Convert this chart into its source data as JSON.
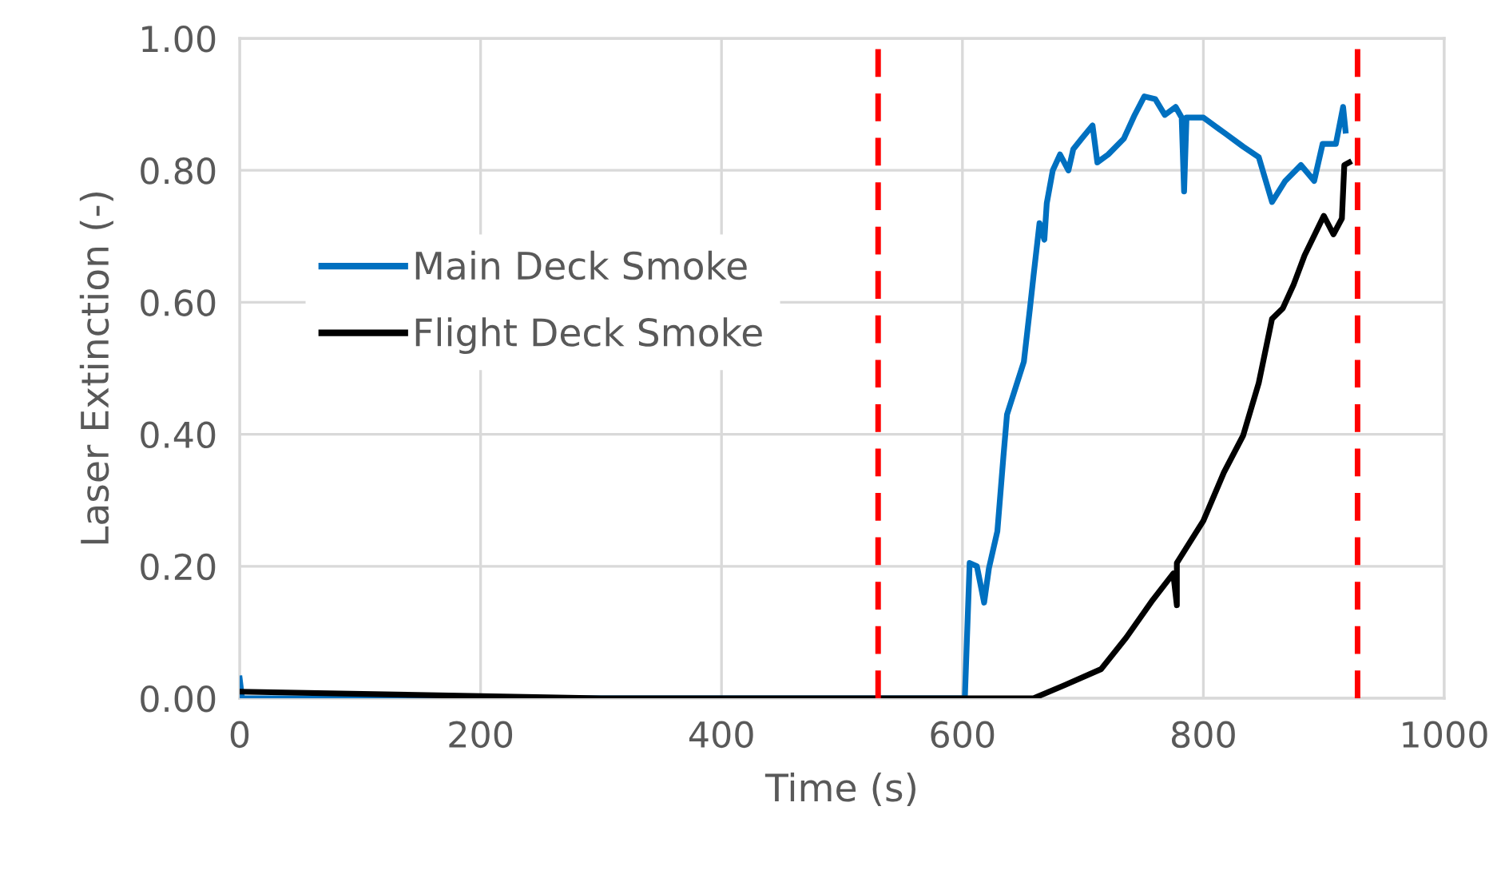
{
  "chart_data": {
    "type": "line",
    "xlabel": "Time (s)",
    "ylabel": "Laser Extinction (-)",
    "xlim": [
      0,
      1000
    ],
    "xticks": [
      0,
      200,
      400,
      600,
      800,
      1000
    ],
    "ylim": [
      0,
      1
    ],
    "yticks": [
      {
        "value": 0,
        "label": "0.00"
      },
      {
        "value": 0.2,
        "label": "0.20"
      },
      {
        "value": 0.4,
        "label": "0.40"
      },
      {
        "value": 0.6,
        "label": "0.60"
      },
      {
        "value": 0.8,
        "label": "0.80"
      },
      {
        "value": 1,
        "label": "1.00"
      }
    ],
    "grid": true,
    "legend": "left",
    "marker": "none",
    "line_style": "solid",
    "series": [
      {
        "name": "Main Deck Smoke",
        "color": "#0070c0",
        "x": [
          0,
          2,
          100,
          300,
          500,
          602,
          606,
          612,
          618,
          622,
          629,
          634,
          637,
          644,
          651,
          656,
          659,
          664,
          668,
          670,
          675,
          681,
          688,
          692,
          699,
          708,
          712,
          721,
          734,
          743,
          751,
          760,
          768,
          777,
          782,
          784,
          786,
          800,
          818,
          833,
          846,
          857,
          868,
          881,
          892,
          899,
          910,
          916,
          918
        ],
        "values": [
          0.03,
          0.0,
          0.0,
          0.0,
          0.0,
          0.0,
          0.205,
          0.2,
          0.145,
          0.197,
          0.253,
          0.366,
          0.43,
          0.47,
          0.51,
          0.59,
          0.64,
          0.72,
          0.695,
          0.75,
          0.8,
          0.824,
          0.8,
          0.832,
          0.848,
          0.868,
          0.812,
          0.824,
          0.848,
          0.884,
          0.912,
          0.908,
          0.884,
          0.896,
          0.88,
          0.768,
          0.88,
          0.88,
          0.856,
          0.836,
          0.82,
          0.752,
          0.784,
          0.808,
          0.784,
          0.84,
          0.84,
          0.896,
          0.86
        ]
      },
      {
        "name": "Flight Deck Smoke",
        "color": "#000000",
        "x": [
          0,
          300,
          600,
          659,
          685,
          715,
          736,
          758,
          775,
          778,
          778,
          800,
          817,
          833,
          846,
          857,
          866,
          875,
          884,
          900,
          908,
          915,
          917,
          921
        ],
        "values": [
          0.01,
          0.0,
          0.0,
          0.0,
          0.02,
          0.044,
          0.092,
          0.149,
          0.189,
          0.141,
          0.205,
          0.269,
          0.342,
          0.398,
          0.478,
          0.575,
          0.591,
          0.627,
          0.671,
          0.731,
          0.703,
          0.727,
          0.808,
          0.812
        ]
      }
    ],
    "ref_lines": [
      {
        "axis": "x",
        "value": 530,
        "color": "#ff0000",
        "line_style": "dashed"
      },
      {
        "axis": "x",
        "value": 928,
        "color": "#ff0000",
        "line_style": "dashed"
      }
    ]
  }
}
